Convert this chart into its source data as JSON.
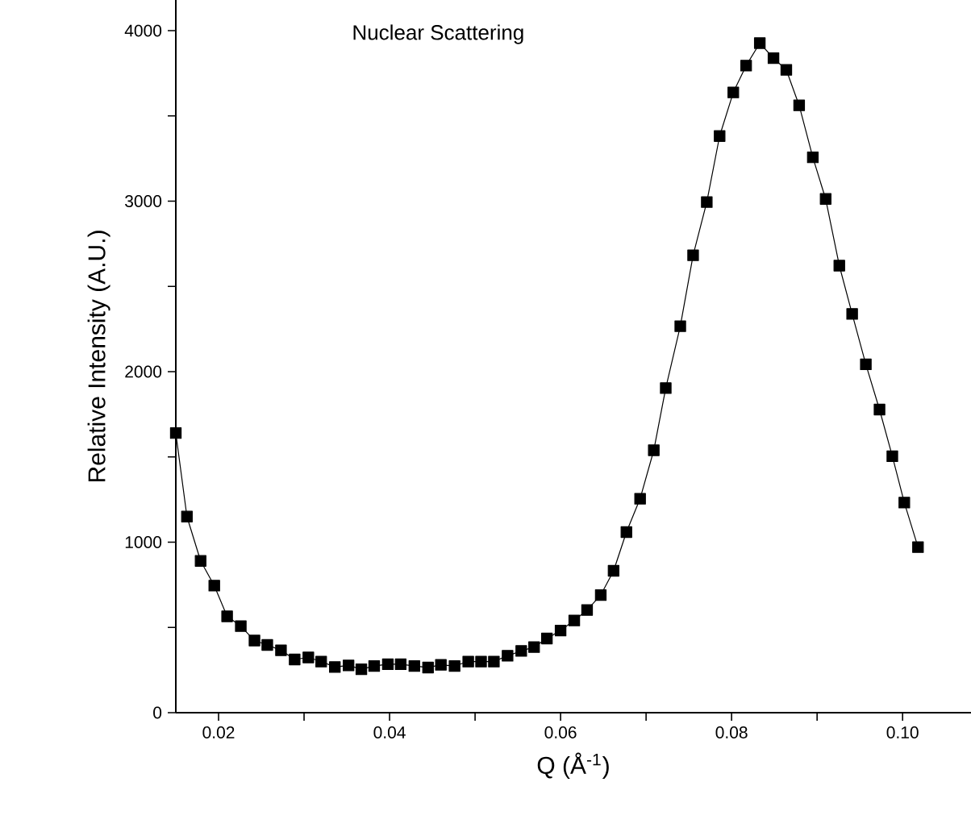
{
  "chart_data": {
    "type": "line",
    "title": "Nuclear Scattering",
    "xlabel": "Q (Å$^{-1}$)",
    "ylabel": "Relative Intensity (A.U.)",
    "x": [
      0.015,
      0.0163,
      0.0179,
      0.0195,
      0.021,
      0.0226,
      0.0242,
      0.0257,
      0.0273,
      0.0289,
      0.0305,
      0.032,
      0.0336,
      0.0352,
      0.0367,
      0.0382,
      0.0398,
      0.0413,
      0.0429,
      0.0445,
      0.046,
      0.0476,
      0.0492,
      0.0507,
      0.0522,
      0.0538,
      0.0554,
      0.0569,
      0.0584,
      0.06,
      0.0616,
      0.0631,
      0.0647,
      0.0662,
      0.0677,
      0.0693,
      0.0709,
      0.0723,
      0.074,
      0.0755,
      0.0771,
      0.0786,
      0.0802,
      0.0817,
      0.0833,
      0.0849,
      0.0864,
      0.0879,
      0.0895,
      0.091,
      0.0926,
      0.0941,
      0.0957,
      0.0973,
      0.0988,
      0.1002,
      0.1018
    ],
    "series": [
      {
        "color": "#000000",
        "values": [
          1640,
          1150,
          890,
          745,
          565,
          508,
          423,
          397,
          366,
          312,
          324,
          300,
          268,
          277,
          255,
          274,
          284,
          284,
          274,
          265,
          281,
          274,
          300,
          300,
          300,
          334,
          362,
          385,
          435,
          482,
          541,
          602,
          690,
          832,
          1059,
          1255,
          1539,
          1904,
          2267,
          2683,
          2995,
          3382,
          3638,
          3795,
          3927,
          3839,
          3770,
          3562,
          3257,
          3013,
          2622,
          2339,
          2043,
          1778,
          1504,
          1232,
          971
        ]
      }
    ],
    "marker": "square",
    "line_style": "solid",
    "xlim": [
      0.015,
      0.108
    ],
    "ylim": [
      0,
      4180
    ],
    "xticks": [
      0.02,
      {
        "value": 0.03,
        "label": null
      },
      0.04,
      {
        "value": 0.05,
        "label": null
      },
      0.06,
      {
        "value": 0.07,
        "label": null
      },
      0.08,
      {
        "value": 0.09,
        "label": null
      },
      {
        "value": 0.1,
        "label": "0.10"
      }
    ],
    "yticks": [
      0,
      {
        "value": 500,
        "label": null
      },
      1000,
      {
        "value": 1500,
        "label": null
      },
      2000,
      {
        "value": 2500,
        "label": null
      },
      3000,
      {
        "value": 3500,
        "label": null
      },
      4000
    ]
  }
}
